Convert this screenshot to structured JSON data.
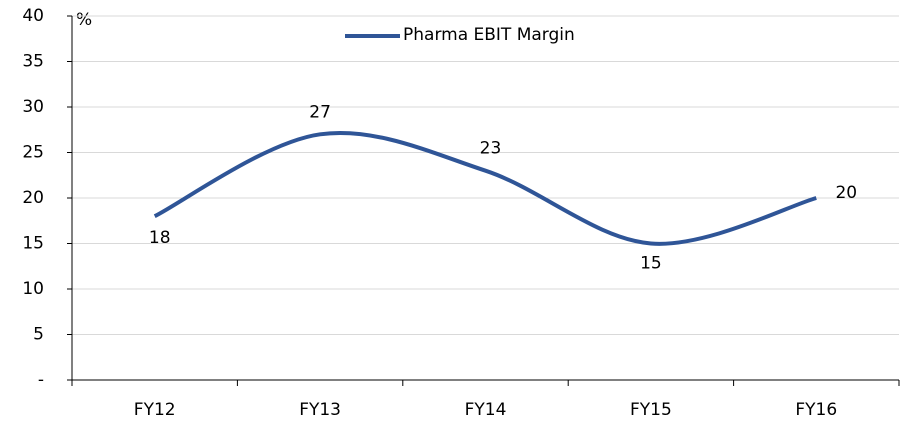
{
  "chart_data": {
    "type": "line",
    "unit_label": "%",
    "categories": [
      "FY12",
      "FY13",
      "FY14",
      "FY15",
      "FY16"
    ],
    "series": [
      {
        "name": "Pharma EBIT Margin",
        "color": "#2f5597",
        "values": [
          18,
          27,
          23,
          15,
          20
        ]
      }
    ],
    "ylim": [
      0,
      40
    ],
    "yticks": [
      {
        "value": 0,
        "label": "-"
      },
      5,
      10,
      15,
      20,
      25,
      30,
      35,
      40
    ],
    "grid": true,
    "smooth": true,
    "legend": "top"
  }
}
